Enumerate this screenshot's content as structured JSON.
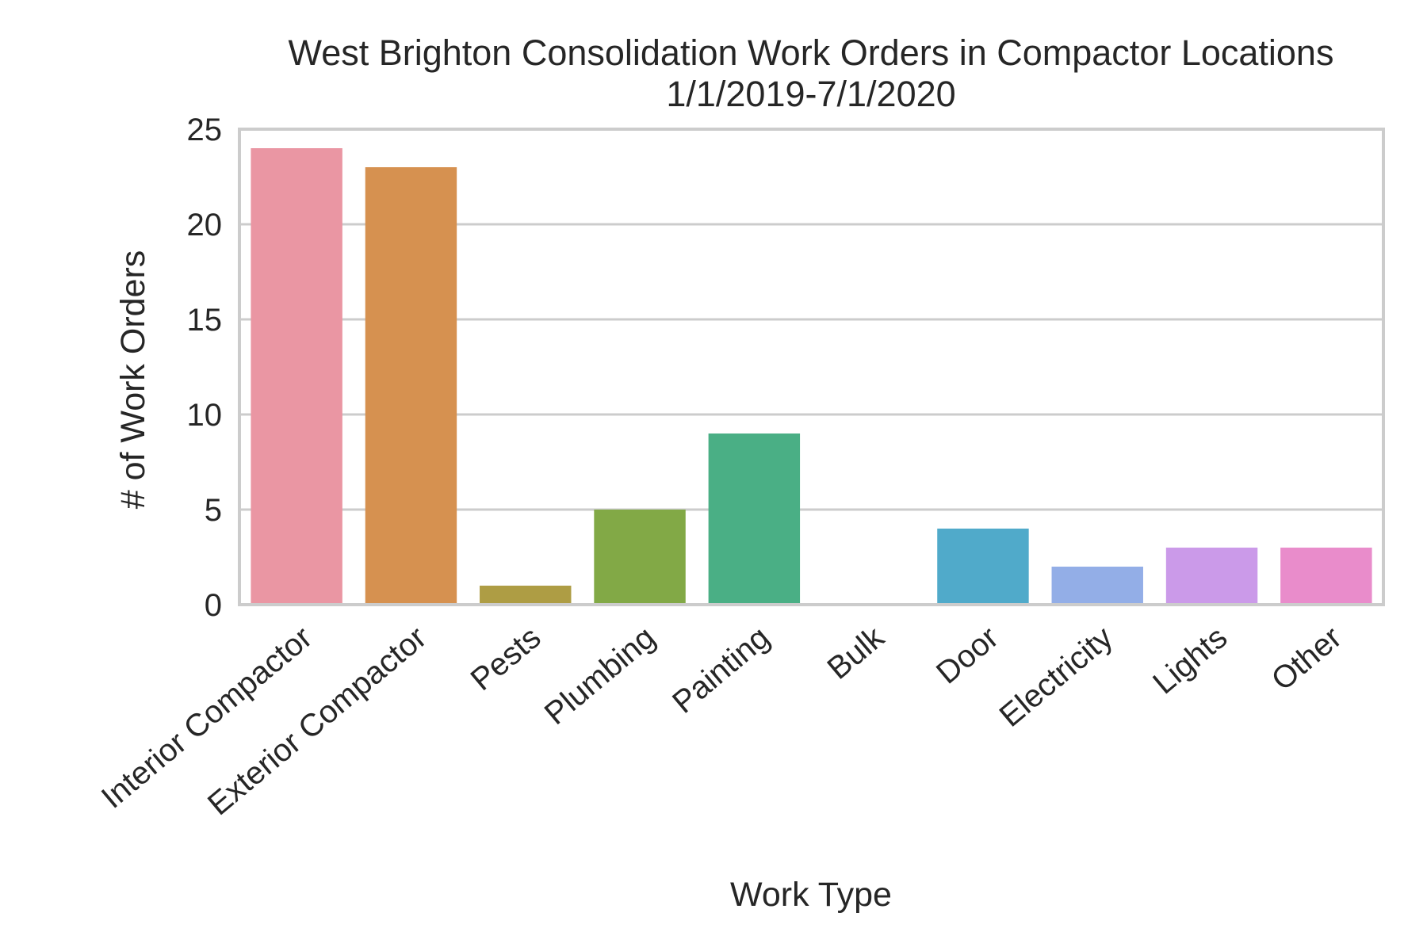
{
  "chart_data": {
    "type": "bar",
    "title": "West Brighton Consolidation Work Orders in Compactor Locations",
    "subtitle": "1/1/2019-7/1/2020",
    "xlabel": "Work Type",
    "ylabel": "# of Work Orders",
    "categories": [
      "Interior Compactor",
      "Exterior Compactor",
      "Pests",
      "Plumbing",
      "Painting",
      "Bulk",
      "Door",
      "Electricity",
      "Lights",
      "Other"
    ],
    "values": [
      24,
      23,
      1,
      5,
      9,
      0,
      4,
      2,
      3,
      3
    ],
    "colors": [
      "#ea96a3",
      "#d69150",
      "#ae9d44",
      "#82a946",
      "#4aaf85",
      "#4caca6",
      "#50aaca",
      "#93aee7",
      "#cb9ae9",
      "#e98ccb"
    ],
    "ylim": [
      0,
      25
    ],
    "yticks": [
      0,
      5,
      10,
      15,
      20,
      25
    ],
    "grid": true,
    "legend": "none"
  }
}
